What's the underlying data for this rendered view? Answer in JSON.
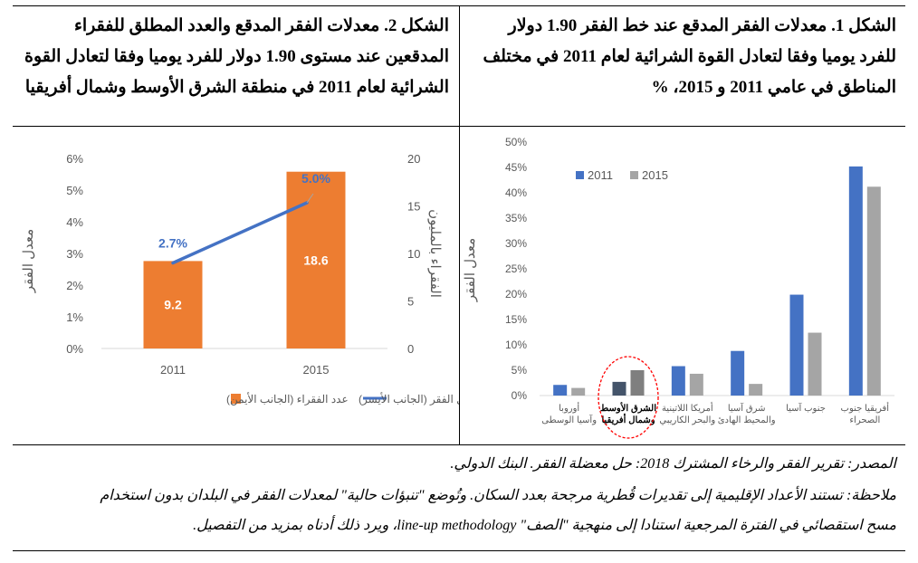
{
  "captions": {
    "figure1": "الشكل 1. معدلات الفقر المدقع عند خط الفقر 1.90 دولار للفرد يوميا وفقا لتعادل القوة الشرائية لعام 2011 في مختلف المناطق في عامي 2011 و 2015، %",
    "figure2": "الشكل 2. معدلات الفقر المدقع والعدد المطلق للفقراء المدقعين عند مستوى 1.90 دولار للفرد يوميا وفقا لتعادل القوة الشرائية لعام 2011 في منطقة الشرق الأوسط وشمال أفريقيا"
  },
  "footer": {
    "source": "المصدر: تقرير الفقر والرخاء المشترك 2018: حل معضلة الفقر. البنك الدولي.",
    "note_line1": "ملاحظة: تستند الأعداد الإقليمية إلى تقديرات قُطرية مرجحة بعدد السكان. وتُوضع \"تنبؤات حالية\" لمعدلات الفقر في البلدان بدون استخدام",
    "note_line2": "مسح استقصائي في الفترة المرجعية استنادا إلى منهجية \"الصف\" line-up methodology، ويرد ذلك أدناه بمزيد من التفصيل."
  },
  "colors": {
    "blue": "#4472C4",
    "gray": "#A5A5A5",
    "dark_blue": "#44546A",
    "dark_gray": "#7F7F7F",
    "orange": "#ED7D31",
    "line_blue": "#4472C4",
    "circle_red": "#FF0000"
  },
  "chart_data": [
    {
      "type": "bar",
      "ylabel": "معدل الفقر",
      "ylim": [
        0,
        50
      ],
      "yticks": [
        "0%",
        "5%",
        "10%",
        "15%",
        "20%",
        "25%",
        "30%",
        "35%",
        "40%",
        "45%",
        "50%"
      ],
      "categories": [
        [
          "أوروبا",
          "وآسيا الوسطى"
        ],
        [
          "الشرق الأوسط",
          "وشمال أفريقيا"
        ],
        [
          "أمريكا اللاتينية",
          "والبحر الكاريبي"
        ],
        [
          "شرق آسيا",
          "والمحيط الهادئ"
        ],
        [
          "جنوب آسيا"
        ],
        [
          "أفريقيا جنوب",
          "الصحراء"
        ]
      ],
      "highlight_index": 1,
      "legend_position": "top-left",
      "series": [
        {
          "name": "2011",
          "values": [
            2.1,
            2.7,
            5.8,
            8.8,
            19.9,
            45.2
          ]
        },
        {
          "name": "2015",
          "values": [
            1.5,
            5.0,
            4.3,
            2.3,
            12.4,
            41.2
          ]
        }
      ]
    },
    {
      "type": "bar+line",
      "categories": [
        "2011",
        "2015"
      ],
      "left_axis": {
        "label": "معدل الفقر",
        "ylim": [
          0,
          6
        ],
        "ticks": [
          "0%",
          "1%",
          "2%",
          "3%",
          "4%",
          "5%",
          "6%"
        ]
      },
      "right_axis": {
        "label": "الفقراء بالمليون",
        "ylim": [
          0,
          20
        ],
        "ticks": [
          "0",
          "5",
          "10",
          "15",
          "20"
        ]
      },
      "bars": {
        "name": "عدد الفقراء (الجانب الأيمن)",
        "values": [
          9.2,
          18.6
        ],
        "labels": [
          "9.2",
          "18.6"
        ]
      },
      "line": {
        "name": "معدل الفقر (الجانب الأيسر)",
        "values": [
          2.7,
          5.0
        ],
        "labels": [
          "2.7%",
          "5.0%"
        ]
      },
      "legend_position": "bottom"
    }
  ]
}
